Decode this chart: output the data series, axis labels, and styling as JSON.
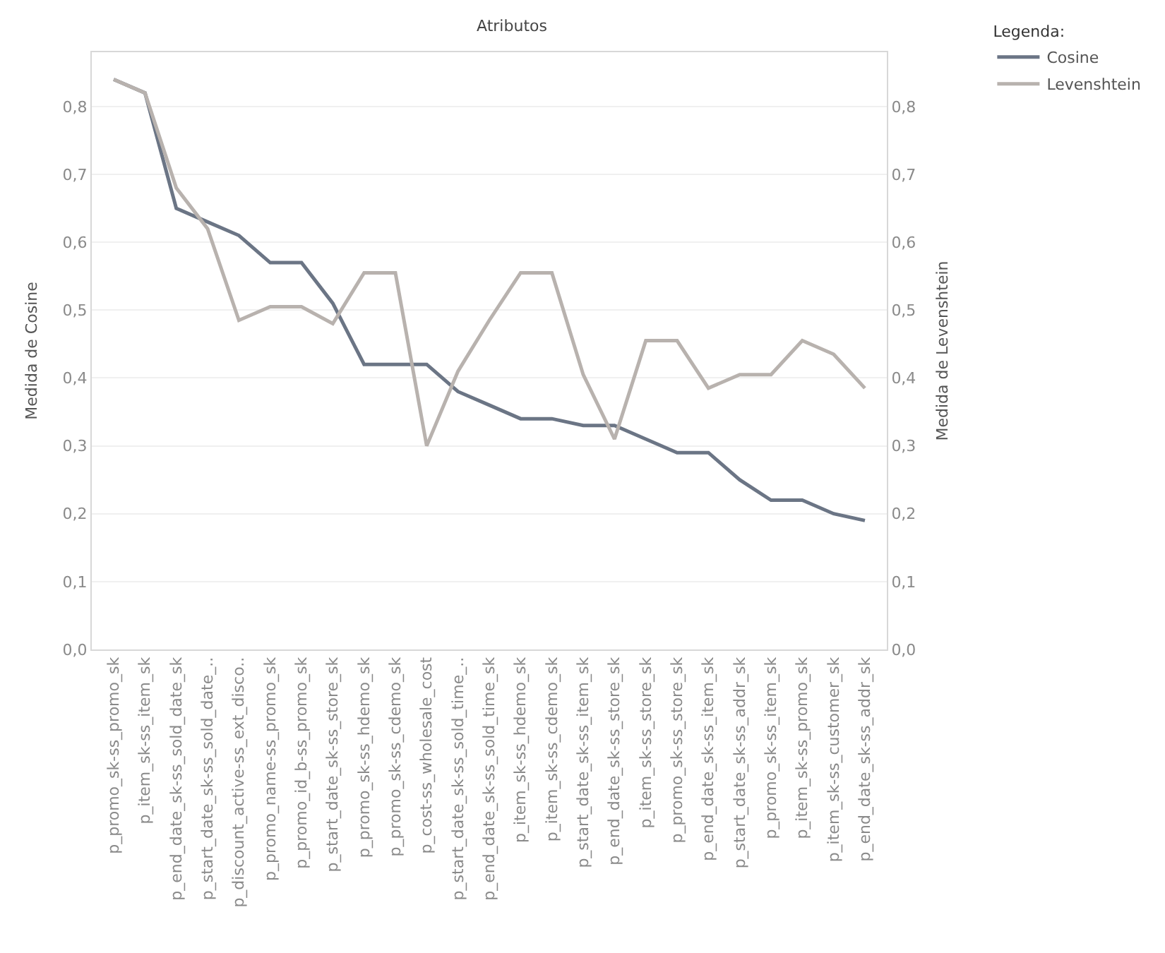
{
  "chart_data": {
    "type": "line",
    "title": "Atributos",
    "ylabel": "Medida de Cosine",
    "y2label": "Medida de Levenshtein",
    "legend_title": "Legenda:",
    "categories": [
      "p_promo_sk-ss_promo_sk",
      "p_item_sk-ss_item_sk",
      "p_end_date_sk-ss_sold_date_sk",
      "p_start_date_sk-ss_sold_date_..",
      "p_discount_active-ss_ext_disco..",
      "p_promo_name-ss_promo_sk",
      "p_promo_id_b-ss_promo_sk",
      "p_start_date_sk-ss_store_sk",
      "p_promo_sk-ss_hdemo_sk",
      "p_promo_sk-ss_cdemo_sk",
      "p_cost-ss_wholesale_cost",
      "p_start_date_sk-ss_sold_time_..",
      "p_end_date_sk-ss_sold_time_sk",
      "p_item_sk-ss_hdemo_sk",
      "p_item_sk-ss_cdemo_sk",
      "p_start_date_sk-ss_item_sk",
      "p_end_date_sk-ss_store_sk",
      "p_item_sk-ss_store_sk",
      "p_promo_sk-ss_store_sk",
      "p_end_date_sk-ss_item_sk",
      "p_start_date_sk-ss_addr_sk",
      "p_promo_sk-ss_item_sk",
      "p_item_sk-ss_promo_sk",
      "p_item_sk-ss_customer_sk",
      "p_end_date_sk-ss_addr_sk"
    ],
    "series": [
      {
        "name": "Cosine",
        "color": "#6b7585",
        "values": [
          0.84,
          0.82,
          0.65,
          0.63,
          0.61,
          0.57,
          0.57,
          0.51,
          0.42,
          0.42,
          0.42,
          0.38,
          0.36,
          0.34,
          0.34,
          0.33,
          0.33,
          0.31,
          0.29,
          0.29,
          0.25,
          0.22,
          0.22,
          0.2,
          0.19
        ]
      },
      {
        "name": "Levenshtein",
        "color": "#b8b2ae",
        "axis": "y2",
        "values": [
          0.84,
          0.82,
          0.68,
          0.62,
          0.485,
          0.505,
          0.505,
          0.48,
          0.555,
          0.555,
          0.3,
          0.41,
          0.485,
          0.555,
          0.555,
          0.405,
          0.31,
          0.455,
          0.455,
          0.385,
          0.405,
          0.405,
          0.455,
          0.435,
          0.385
        ]
      }
    ],
    "ylim": [
      0,
      0.88
    ],
    "yticks": [
      {
        "value": 0,
        "label": "0,0"
      },
      {
        "value": 0.1,
        "label": "0,1"
      },
      {
        "value": 0.2,
        "label": "0,2"
      },
      {
        "value": 0.3,
        "label": "0,3"
      },
      {
        "value": 0.4,
        "label": "0,4"
      },
      {
        "value": 0.5,
        "label": "0,5"
      },
      {
        "value": 0.6,
        "label": "0,6"
      },
      {
        "value": 0.7,
        "label": "0,7"
      },
      {
        "value": 0.8,
        "label": "0,8"
      }
    ],
    "y2lim": [
      0,
      0.88
    ],
    "y2ticks": [
      {
        "value": 0,
        "label": "0,0"
      },
      {
        "value": 0.1,
        "label": "0,1"
      },
      {
        "value": 0.2,
        "label": "0,2"
      },
      {
        "value": 0.3,
        "label": "0,3"
      },
      {
        "value": 0.4,
        "label": "0,4"
      },
      {
        "value": 0.5,
        "label": "0,5"
      },
      {
        "value": 0.6,
        "label": "0,6"
      },
      {
        "value": 0.7,
        "label": "0,7"
      },
      {
        "value": 0.8,
        "label": "0,8"
      }
    ],
    "grid": "y",
    "legend": "top right",
    "marker": "none",
    "line_style": "solid"
  }
}
